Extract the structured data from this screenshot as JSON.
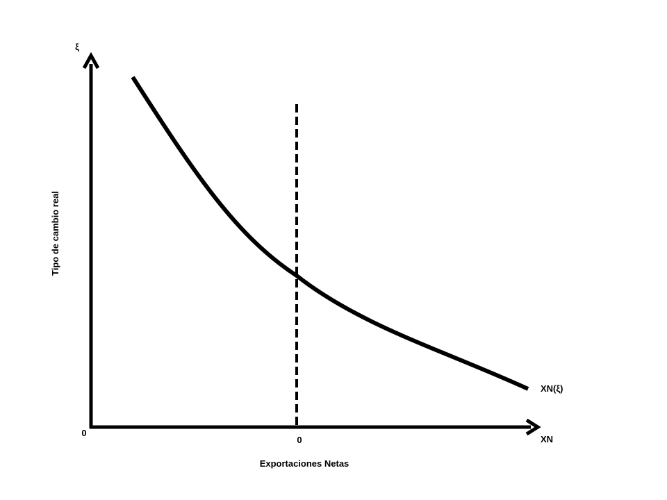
{
  "diagram": {
    "y_axis_symbol": "ξ",
    "y_axis_title": "Tipo de cambio real",
    "x_axis_symbol": "XN",
    "x_axis_title": "Exportaciones Netas",
    "origin_label": "0",
    "zero_marker_label": "0",
    "curve_label": "XN(ξ)",
    "colors": {
      "line": "#000000",
      "background": "#ffffff"
    }
  }
}
